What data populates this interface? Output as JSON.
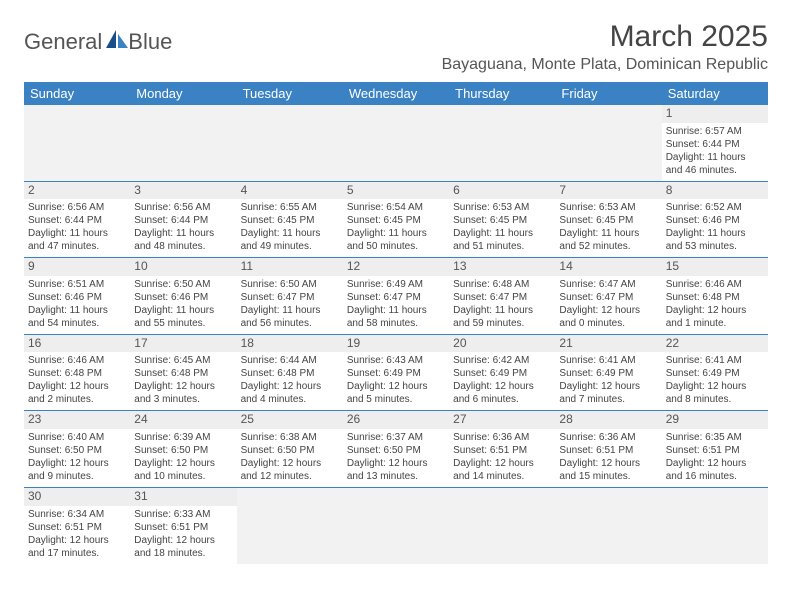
{
  "logo": {
    "text1": "General",
    "text2": "Blue"
  },
  "title": "March 2025",
  "location": "Bayaguana, Monte Plata, Dominican Republic",
  "colors": {
    "header_bg": "#3b82c4",
    "header_text": "#ffffff",
    "daynum_bg": "#eeeeee",
    "blank_bg": "#f2f2f2",
    "week_border": "#3b82c4",
    "body_text": "#444444"
  },
  "weekdays": [
    "Sunday",
    "Monday",
    "Tuesday",
    "Wednesday",
    "Thursday",
    "Friday",
    "Saturday"
  ],
  "weeks": [
    [
      null,
      null,
      null,
      null,
      null,
      null,
      {
        "n": "1",
        "sr": "Sunrise: 6:57 AM",
        "ss": "Sunset: 6:44 PM",
        "dl1": "Daylight: 11 hours",
        "dl2": "and 46 minutes."
      }
    ],
    [
      {
        "n": "2",
        "sr": "Sunrise: 6:56 AM",
        "ss": "Sunset: 6:44 PM",
        "dl1": "Daylight: 11 hours",
        "dl2": "and 47 minutes."
      },
      {
        "n": "3",
        "sr": "Sunrise: 6:56 AM",
        "ss": "Sunset: 6:44 PM",
        "dl1": "Daylight: 11 hours",
        "dl2": "and 48 minutes."
      },
      {
        "n": "4",
        "sr": "Sunrise: 6:55 AM",
        "ss": "Sunset: 6:45 PM",
        "dl1": "Daylight: 11 hours",
        "dl2": "and 49 minutes."
      },
      {
        "n": "5",
        "sr": "Sunrise: 6:54 AM",
        "ss": "Sunset: 6:45 PM",
        "dl1": "Daylight: 11 hours",
        "dl2": "and 50 minutes."
      },
      {
        "n": "6",
        "sr": "Sunrise: 6:53 AM",
        "ss": "Sunset: 6:45 PM",
        "dl1": "Daylight: 11 hours",
        "dl2": "and 51 minutes."
      },
      {
        "n": "7",
        "sr": "Sunrise: 6:53 AM",
        "ss": "Sunset: 6:45 PM",
        "dl1": "Daylight: 11 hours",
        "dl2": "and 52 minutes."
      },
      {
        "n": "8",
        "sr": "Sunrise: 6:52 AM",
        "ss": "Sunset: 6:46 PM",
        "dl1": "Daylight: 11 hours",
        "dl2": "and 53 minutes."
      }
    ],
    [
      {
        "n": "9",
        "sr": "Sunrise: 6:51 AM",
        "ss": "Sunset: 6:46 PM",
        "dl1": "Daylight: 11 hours",
        "dl2": "and 54 minutes."
      },
      {
        "n": "10",
        "sr": "Sunrise: 6:50 AM",
        "ss": "Sunset: 6:46 PM",
        "dl1": "Daylight: 11 hours",
        "dl2": "and 55 minutes."
      },
      {
        "n": "11",
        "sr": "Sunrise: 6:50 AM",
        "ss": "Sunset: 6:47 PM",
        "dl1": "Daylight: 11 hours",
        "dl2": "and 56 minutes."
      },
      {
        "n": "12",
        "sr": "Sunrise: 6:49 AM",
        "ss": "Sunset: 6:47 PM",
        "dl1": "Daylight: 11 hours",
        "dl2": "and 58 minutes."
      },
      {
        "n": "13",
        "sr": "Sunrise: 6:48 AM",
        "ss": "Sunset: 6:47 PM",
        "dl1": "Daylight: 11 hours",
        "dl2": "and 59 minutes."
      },
      {
        "n": "14",
        "sr": "Sunrise: 6:47 AM",
        "ss": "Sunset: 6:47 PM",
        "dl1": "Daylight: 12 hours",
        "dl2": "and 0 minutes."
      },
      {
        "n": "15",
        "sr": "Sunrise: 6:46 AM",
        "ss": "Sunset: 6:48 PM",
        "dl1": "Daylight: 12 hours",
        "dl2": "and 1 minute."
      }
    ],
    [
      {
        "n": "16",
        "sr": "Sunrise: 6:46 AM",
        "ss": "Sunset: 6:48 PM",
        "dl1": "Daylight: 12 hours",
        "dl2": "and 2 minutes."
      },
      {
        "n": "17",
        "sr": "Sunrise: 6:45 AM",
        "ss": "Sunset: 6:48 PM",
        "dl1": "Daylight: 12 hours",
        "dl2": "and 3 minutes."
      },
      {
        "n": "18",
        "sr": "Sunrise: 6:44 AM",
        "ss": "Sunset: 6:48 PM",
        "dl1": "Daylight: 12 hours",
        "dl2": "and 4 minutes."
      },
      {
        "n": "19",
        "sr": "Sunrise: 6:43 AM",
        "ss": "Sunset: 6:49 PM",
        "dl1": "Daylight: 12 hours",
        "dl2": "and 5 minutes."
      },
      {
        "n": "20",
        "sr": "Sunrise: 6:42 AM",
        "ss": "Sunset: 6:49 PM",
        "dl1": "Daylight: 12 hours",
        "dl2": "and 6 minutes."
      },
      {
        "n": "21",
        "sr": "Sunrise: 6:41 AM",
        "ss": "Sunset: 6:49 PM",
        "dl1": "Daylight: 12 hours",
        "dl2": "and 7 minutes."
      },
      {
        "n": "22",
        "sr": "Sunrise: 6:41 AM",
        "ss": "Sunset: 6:49 PM",
        "dl1": "Daylight: 12 hours",
        "dl2": "and 8 minutes."
      }
    ],
    [
      {
        "n": "23",
        "sr": "Sunrise: 6:40 AM",
        "ss": "Sunset: 6:50 PM",
        "dl1": "Daylight: 12 hours",
        "dl2": "and 9 minutes."
      },
      {
        "n": "24",
        "sr": "Sunrise: 6:39 AM",
        "ss": "Sunset: 6:50 PM",
        "dl1": "Daylight: 12 hours",
        "dl2": "and 10 minutes."
      },
      {
        "n": "25",
        "sr": "Sunrise: 6:38 AM",
        "ss": "Sunset: 6:50 PM",
        "dl1": "Daylight: 12 hours",
        "dl2": "and 12 minutes."
      },
      {
        "n": "26",
        "sr": "Sunrise: 6:37 AM",
        "ss": "Sunset: 6:50 PM",
        "dl1": "Daylight: 12 hours",
        "dl2": "and 13 minutes."
      },
      {
        "n": "27",
        "sr": "Sunrise: 6:36 AM",
        "ss": "Sunset: 6:51 PM",
        "dl1": "Daylight: 12 hours",
        "dl2": "and 14 minutes."
      },
      {
        "n": "28",
        "sr": "Sunrise: 6:36 AM",
        "ss": "Sunset: 6:51 PM",
        "dl1": "Daylight: 12 hours",
        "dl2": "and 15 minutes."
      },
      {
        "n": "29",
        "sr": "Sunrise: 6:35 AM",
        "ss": "Sunset: 6:51 PM",
        "dl1": "Daylight: 12 hours",
        "dl2": "and 16 minutes."
      }
    ],
    [
      {
        "n": "30",
        "sr": "Sunrise: 6:34 AM",
        "ss": "Sunset: 6:51 PM",
        "dl1": "Daylight: 12 hours",
        "dl2": "and 17 minutes."
      },
      {
        "n": "31",
        "sr": "Sunrise: 6:33 AM",
        "ss": "Sunset: 6:51 PM",
        "dl1": "Daylight: 12 hours",
        "dl2": "and 18 minutes."
      },
      null,
      null,
      null,
      null,
      null
    ]
  ]
}
